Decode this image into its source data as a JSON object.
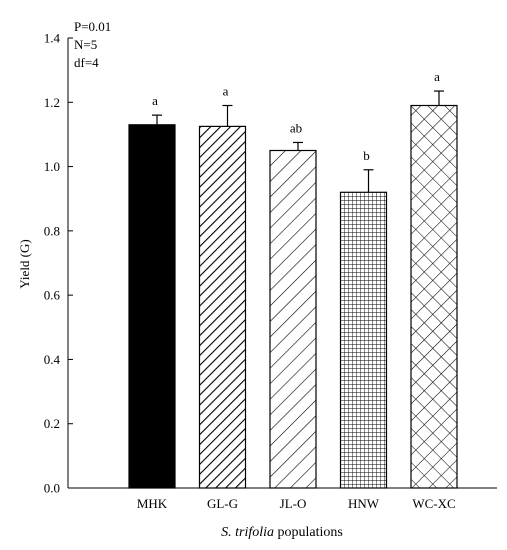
{
  "chart_data": {
    "type": "bar",
    "categories": [
      "MHK",
      "GL-G",
      "JL-O",
      "HNW",
      "WC-XC"
    ],
    "values": [
      1.13,
      1.125,
      1.05,
      0.92,
      1.19
    ],
    "errors": [
      0.03,
      0.065,
      0.025,
      0.07,
      0.045
    ],
    "significance_labels": [
      "a",
      "a",
      "ab",
      "b",
      "a"
    ],
    "fill_patterns": [
      "solid",
      "diagonal-stripes",
      "wide-diagonal-stripes",
      "grid",
      "crosshatch"
    ],
    "ylabel": "Yield (G)",
    "xlabel_italic": "S. trifolia",
    "xlabel_rest": " populations",
    "ylim": [
      0,
      1.4
    ],
    "yticks": [
      "0.0",
      "0.2",
      "0.4",
      "0.6",
      "0.8",
      "1.0",
      "1.2",
      "1.4"
    ],
    "annotations": [
      "P=0.01",
      "N=5",
      "df=4"
    ],
    "colors": {
      "bar_stroke": "#000000",
      "bar_fill": "#ffffff",
      "solid_fill": "#000000"
    },
    "grid": false
  }
}
